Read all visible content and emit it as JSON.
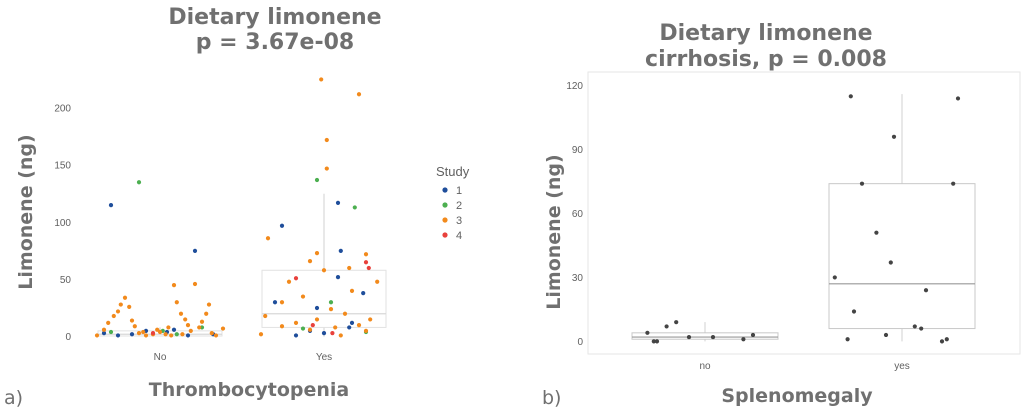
{
  "chart_data": [
    {
      "type": "scatter",
      "panel_label": "a)",
      "title": "Dietary limonene",
      "subtitle": "p = 3.67e-08",
      "xlabel": "Thrombocytopenia",
      "ylabel": "Limonene (ng)",
      "categories": [
        "No",
        "Yes"
      ],
      "ylim": [
        -10,
        235
      ],
      "yticks": [
        0,
        50,
        100,
        150,
        200
      ],
      "grid": false,
      "legend": {
        "title": "Study",
        "placement": "right",
        "items": [
          {
            "name": "1",
            "color": "#1f4e9b"
          },
          {
            "name": "2",
            "color": "#4caf50"
          },
          {
            "name": "3",
            "color": "#f28a1c"
          },
          {
            "name": "4",
            "color": "#e8413c"
          }
        ]
      },
      "boxplots": [
        {
          "category": "No",
          "q1": 0.5,
          "median": 2,
          "q3": 5,
          "whisker_low": 0,
          "whisker_high": 8
        },
        {
          "category": "Yes",
          "q1": 8,
          "median": 20,
          "q3": 58,
          "whisker_low": 0,
          "whisker_high": 125
        }
      ],
      "series": [
        {
          "name": "1",
          "color": "#1f4e9b",
          "points": [
            [
              "No",
              -0.35,
              115
            ],
            [
              "No",
              0.25,
              75
            ],
            [
              "No",
              -0.4,
              3
            ],
            [
              "No",
              -0.3,
              1
            ],
            [
              "No",
              -0.1,
              5
            ],
            [
              "No",
              0.05,
              4
            ],
            [
              "No",
              0.2,
              1
            ],
            [
              "No",
              0.38,
              2
            ],
            [
              "No",
              -0.2,
              2
            ],
            [
              "No",
              0.1,
              6
            ],
            [
              "Yes",
              -0.3,
              97
            ],
            [
              "Yes",
              0.1,
              117
            ],
            [
              "Yes",
              0.12,
              75
            ],
            [
              "Yes",
              0.1,
              52
            ],
            [
              "Yes",
              0.28,
              38
            ],
            [
              "Yes",
              -0.35,
              30
            ],
            [
              "Yes",
              -0.05,
              25
            ],
            [
              "Yes",
              0.2,
              12
            ],
            [
              "Yes",
              -0.1,
              5
            ],
            [
              "Yes",
              0.0,
              3
            ],
            [
              "Yes",
              0.18,
              8
            ],
            [
              "Yes",
              -0.2,
              1
            ]
          ]
        },
        {
          "name": "2",
          "color": "#4caf50",
          "points": [
            [
              "No",
              -0.15,
              135
            ],
            [
              "No",
              0.3,
              8
            ],
            [
              "No",
              0.02,
              5
            ],
            [
              "No",
              -0.35,
              4
            ],
            [
              "No",
              0.12,
              2
            ],
            [
              "Yes",
              -0.05,
              137
            ],
            [
              "Yes",
              0.22,
              113
            ],
            [
              "Yes",
              0.05,
              30
            ],
            [
              "Yes",
              -0.15,
              7
            ],
            [
              "Yes",
              0.3,
              4
            ]
          ]
        },
        {
          "name": "3",
          "color": "#f28a1c",
          "points": [
            [
              "No",
              -0.4,
              6
            ],
            [
              "No",
              -0.37,
              12
            ],
            [
              "No",
              -0.33,
              18
            ],
            [
              "No",
              -0.3,
              22
            ],
            [
              "No",
              -0.28,
              28
            ],
            [
              "No",
              -0.25,
              34
            ],
            [
              "No",
              -0.22,
              26
            ],
            [
              "No",
              -0.2,
              14
            ],
            [
              "No",
              -0.18,
              9
            ],
            [
              "No",
              -0.15,
              3
            ],
            [
              "No",
              -0.1,
              1
            ],
            [
              "No",
              -0.05,
              2
            ],
            [
              "No",
              0.0,
              4
            ],
            [
              "No",
              0.04,
              2
            ],
            [
              "No",
              0.08,
              1
            ],
            [
              "No",
              0.1,
              45
            ],
            [
              "No",
              0.12,
              30
            ],
            [
              "No",
              0.15,
              20
            ],
            [
              "No",
              0.18,
              15
            ],
            [
              "No",
              0.2,
              10
            ],
            [
              "No",
              0.22,
              5
            ],
            [
              "No",
              0.25,
              46
            ],
            [
              "No",
              0.28,
              8
            ],
            [
              "No",
              0.3,
              13
            ],
            [
              "No",
              0.33,
              20
            ],
            [
              "No",
              0.35,
              28
            ],
            [
              "No",
              0.37,
              3
            ],
            [
              "No",
              0.4,
              1
            ],
            [
              "No",
              -0.45,
              1
            ],
            [
              "No",
              0.45,
              7
            ],
            [
              "No",
              -0.12,
              4
            ],
            [
              "No",
              0.06,
              8
            ],
            [
              "No",
              -0.02,
              6
            ],
            [
              "No",
              0.16,
              2
            ],
            [
              "Yes",
              -0.02,
              225
            ],
            [
              "Yes",
              0.25,
              212
            ],
            [
              "Yes",
              0.02,
              172
            ],
            [
              "Yes",
              0.02,
              147
            ],
            [
              "Yes",
              -0.4,
              86
            ],
            [
              "Yes",
              -0.05,
              73
            ],
            [
              "Yes",
              0.3,
              72
            ],
            [
              "Yes",
              -0.1,
              66
            ],
            [
              "Yes",
              0.0,
              58
            ],
            [
              "Yes",
              -0.25,
              48
            ],
            [
              "Yes",
              0.38,
              48
            ],
            [
              "Yes",
              0.2,
              40
            ],
            [
              "Yes",
              -0.15,
              35
            ],
            [
              "Yes",
              -0.3,
              30
            ],
            [
              "Yes",
              0.05,
              24
            ],
            [
              "Yes",
              0.15,
              20
            ],
            [
              "Yes",
              -0.42,
              18
            ],
            [
              "Yes",
              0.33,
              15
            ],
            [
              "Yes",
              -0.2,
              12
            ],
            [
              "Yes",
              0.25,
              10
            ],
            [
              "Yes",
              -0.3,
              9
            ],
            [
              "Yes",
              0.08,
              8
            ],
            [
              "Yes",
              -0.1,
              6
            ],
            [
              "Yes",
              0.3,
              5
            ],
            [
              "Yes",
              -0.45,
              2
            ],
            [
              "Yes",
              0.12,
              1
            ],
            [
              "Yes",
              -0.05,
              15
            ],
            [
              "Yes",
              0.18,
              60
            ]
          ]
        },
        {
          "name": "4",
          "color": "#e8413c",
          "points": [
            [
              "No",
              -0.05,
              3
            ],
            [
              "Yes",
              -0.2,
              51
            ],
            [
              "Yes",
              0.3,
              65
            ],
            [
              "Yes",
              0.32,
              60
            ],
            [
              "Yes",
              -0.08,
              10
            ],
            [
              "Yes",
              0.06,
              3
            ]
          ]
        }
      ]
    },
    {
      "type": "scatter",
      "panel_label": "b)",
      "title": "Dietary limonene",
      "subtitle": "cirrhosis, p = 0.008",
      "xlabel": "Splenomegaly",
      "ylabel": "Limonene (ng)",
      "categories": [
        "no",
        "yes"
      ],
      "ylim": [
        -5,
        125
      ],
      "yticks": [
        0,
        30,
        60,
        90,
        120
      ],
      "grid": false,
      "boxplots": [
        {
          "category": "no",
          "q1": 1,
          "median": 2,
          "q3": 4,
          "whisker_low": 0,
          "whisker_high": 9
        },
        {
          "category": "yes",
          "q1": 6,
          "median": 27,
          "q3": 74,
          "whisker_low": 0,
          "whisker_high": 116
        }
      ],
      "points": [
        [
          "no",
          -0.36,
          4
        ],
        [
          "no",
          -0.32,
          0
        ],
        [
          "no",
          -0.3,
          0
        ],
        [
          "no",
          -0.24,
          7
        ],
        [
          "no",
          -0.18,
          9
        ],
        [
          "no",
          -0.1,
          2
        ],
        [
          "no",
          0.05,
          2
        ],
        [
          "no",
          0.24,
          1
        ],
        [
          "no",
          0.3,
          3
        ],
        [
          "yes",
          -0.32,
          115
        ],
        [
          "yes",
          -0.05,
          96
        ],
        [
          "yes",
          0.35,
          114
        ],
        [
          "yes",
          -0.25,
          74
        ],
        [
          "yes",
          0.32,
          74
        ],
        [
          "yes",
          -0.16,
          51
        ],
        [
          "yes",
          -0.07,
          37
        ],
        [
          "yes",
          -0.42,
          30
        ],
        [
          "yes",
          0.15,
          24
        ],
        [
          "yes",
          -0.3,
          14
        ],
        [
          "yes",
          -0.34,
          1
        ],
        [
          "yes",
          -0.1,
          3
        ],
        [
          "yes",
          0.08,
          7
        ],
        [
          "yes",
          0.12,
          6
        ],
        [
          "yes",
          0.25,
          0
        ],
        [
          "yes",
          0.28,
          1
        ]
      ]
    }
  ]
}
